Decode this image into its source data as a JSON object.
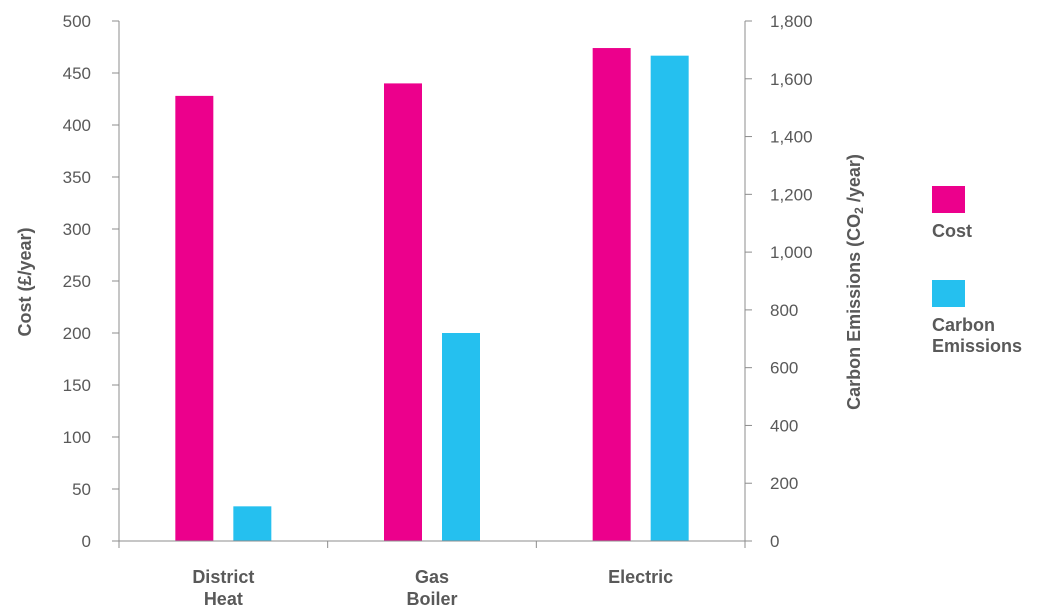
{
  "chart_data": {
    "type": "bar",
    "categories": [
      [
        "District",
        "Heat"
      ],
      [
        "Gas",
        "Boiler"
      ],
      [
        "Electric"
      ]
    ],
    "series": [
      {
        "name": "Cost",
        "legend_lines": [
          "Cost"
        ],
        "axis": "left",
        "color": "#ec008c",
        "values": [
          428,
          440,
          474
        ]
      },
      {
        "name": "Carbon Emissions",
        "legend_lines": [
          "Carbon",
          "Emissions"
        ],
        "axis": "right",
        "color": "#25c0ef",
        "values": [
          120,
          720,
          1680
        ]
      }
    ],
    "y_left": {
      "label": "Cost (£/year)",
      "min": 0,
      "max": 500,
      "ticks": [
        "0",
        "50",
        "100",
        "150",
        "200",
        "250",
        "300",
        "350",
        "400",
        "450",
        "500"
      ]
    },
    "y_right": {
      "label_main": "Carbon Emissions (CO",
      "label_sub": "2",
      "label_end": " /year)",
      "min": 0,
      "max": 1800,
      "ticks": [
        "0",
        "200",
        "400",
        "600",
        "800",
        "1,000",
        "1,200",
        "1,400",
        "1,600",
        "1,800"
      ]
    },
    "legend_position": "right",
    "grid": false
  }
}
